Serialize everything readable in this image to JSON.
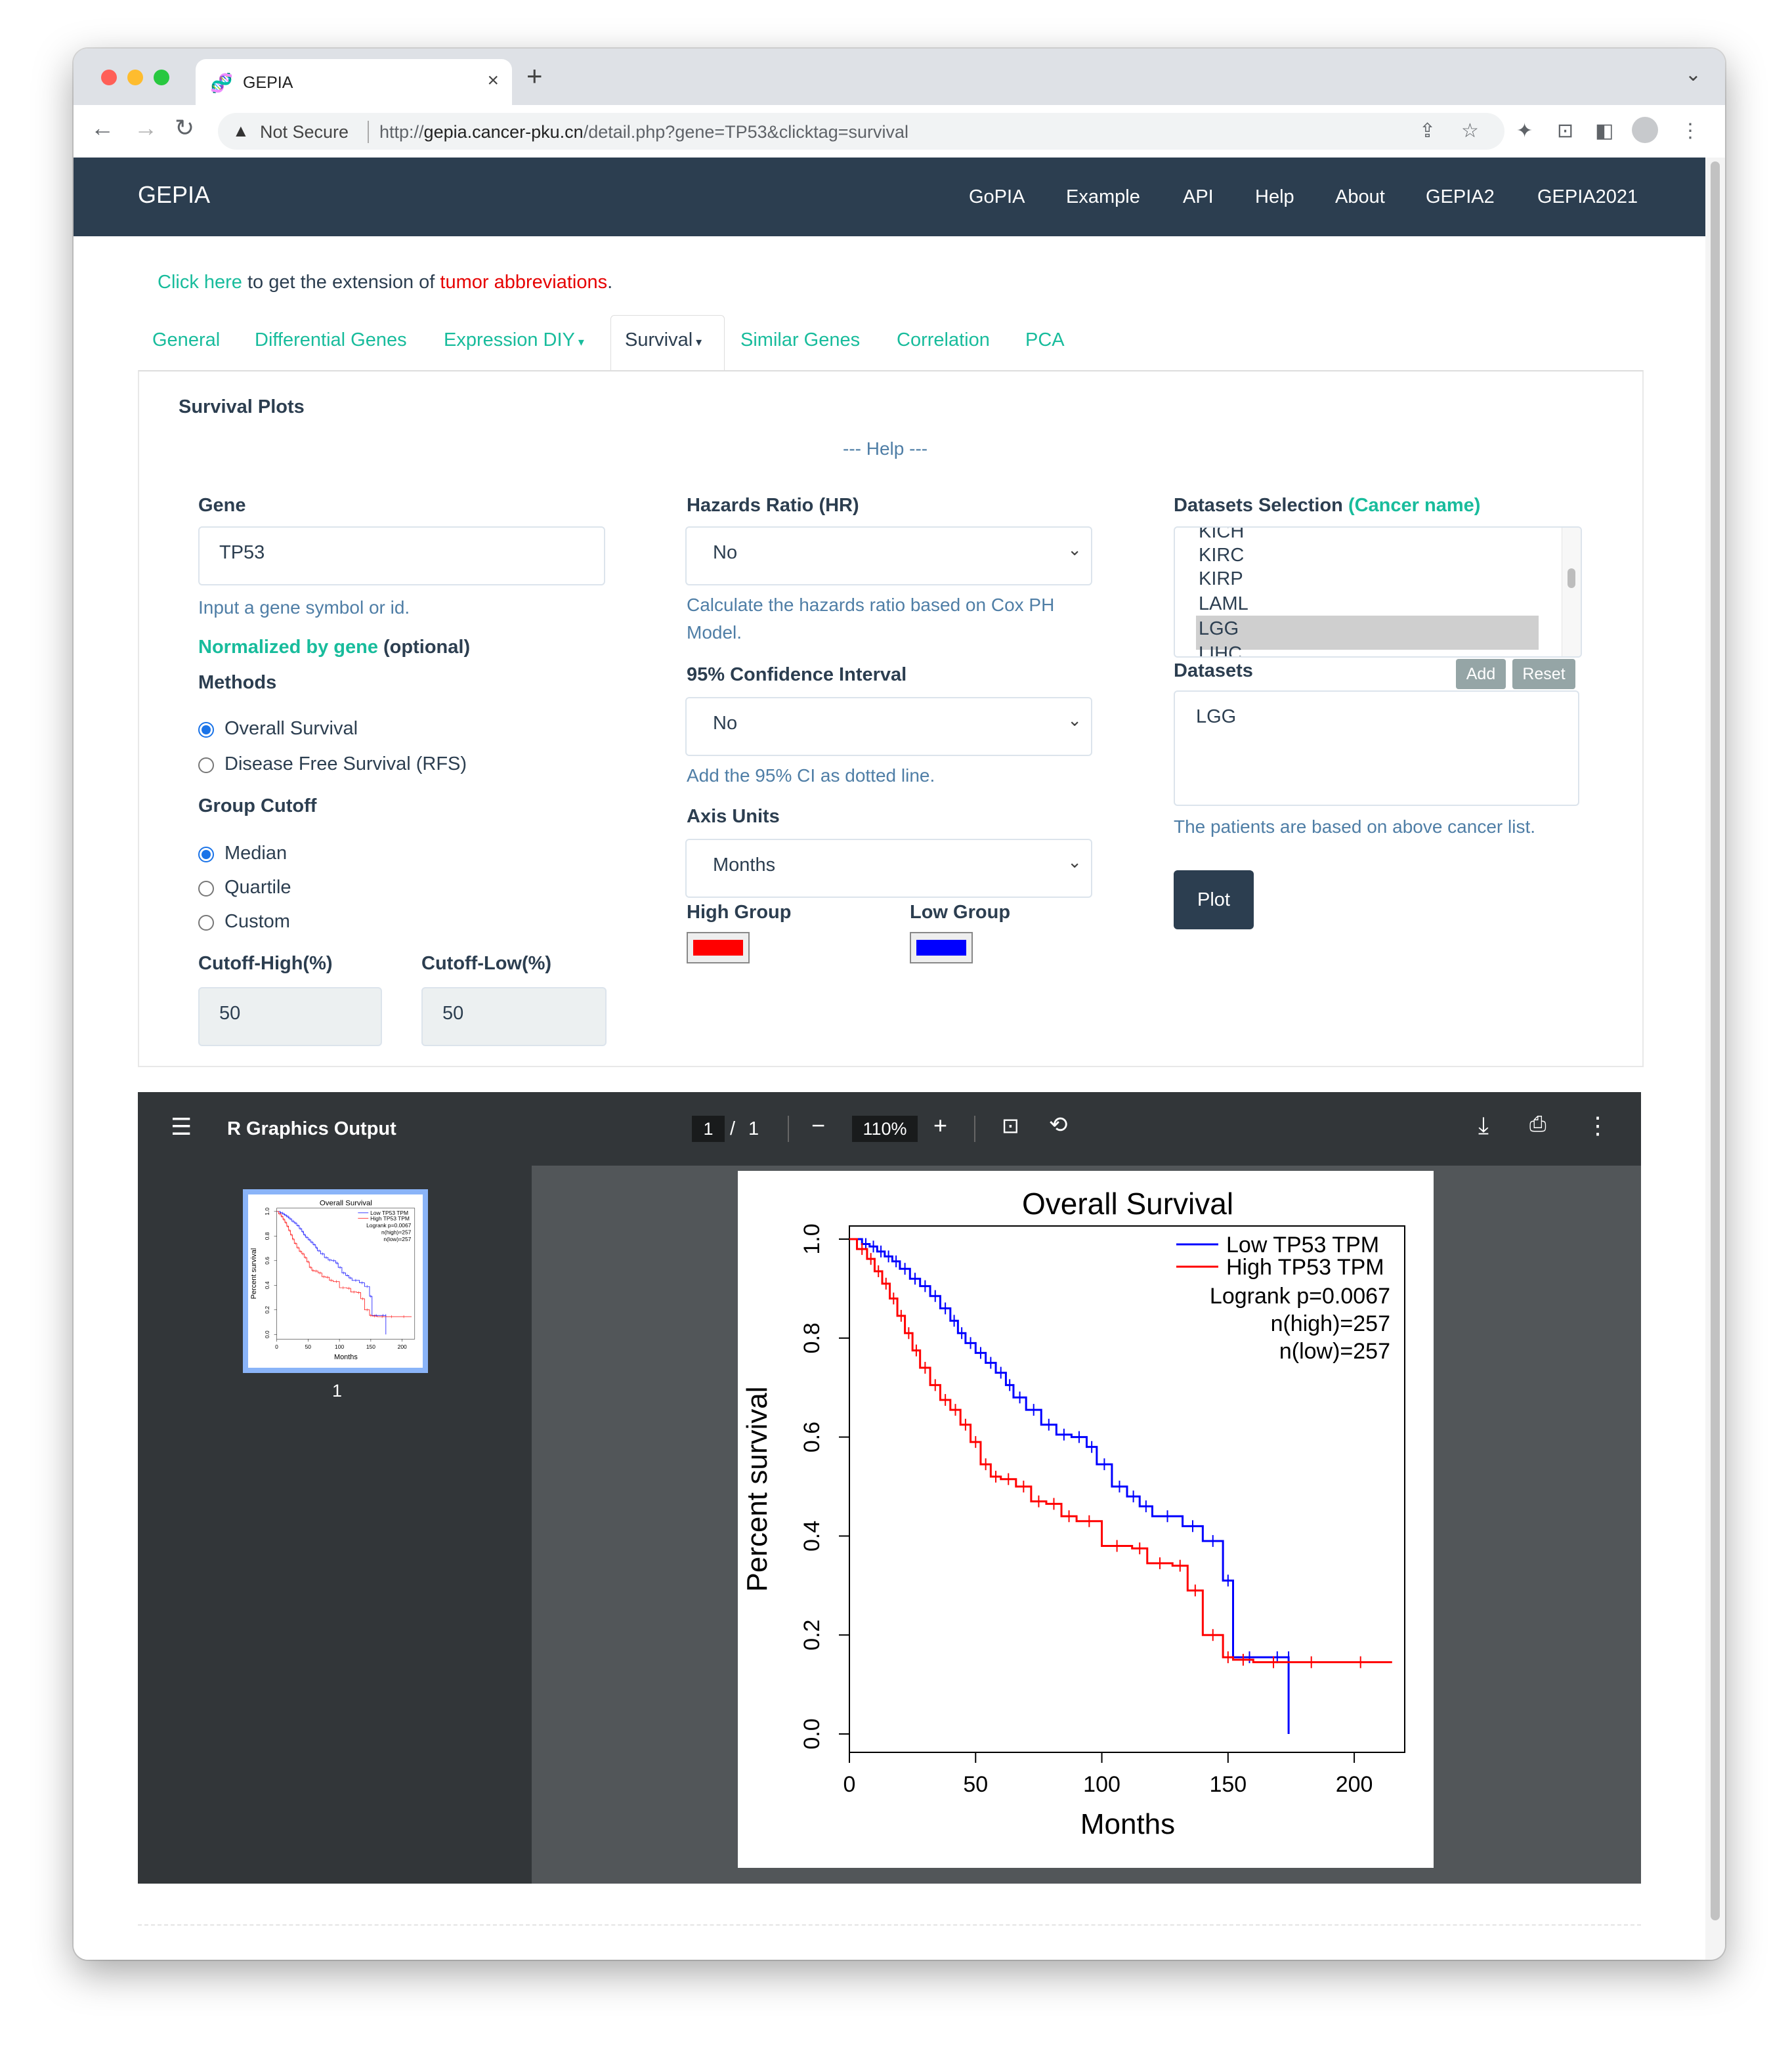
{
  "browser": {
    "tab_title": "GEPIA",
    "security_label": "Not Secure",
    "url_prefix": "http://",
    "url_host": "gepia.cancer-pku.cn",
    "url_path": "/detail.php?gene=TP53&clicktag=survival"
  },
  "navbar": {
    "brand": "GEPIA",
    "links": [
      "GoPIA",
      "Example",
      "API",
      "Help",
      "About",
      "GEPIA2",
      "GEPIA2021"
    ]
  },
  "notice": {
    "link": "Click here",
    "middle": " to get the extension of ",
    "red": "tumor abbreviations",
    "end": "."
  },
  "subtabs": [
    "General",
    "Differential Genes",
    "Expression DIY",
    "Survival",
    "Similar Genes",
    "Correlation",
    "PCA"
  ],
  "active_subtab": "Survival",
  "form": {
    "section_title": "Survival Plots",
    "help": "--- Help ---",
    "gene_label": "Gene",
    "gene_value": "TP53",
    "gene_hint": "Input a gene symbol or id.",
    "normalized_link": "Normalized by gene",
    "normalized_suffix": " (optional)",
    "methods_label": "Methods",
    "method_options": [
      "Overall Survival",
      "Disease Free Survival (RFS)"
    ],
    "group_cutoff_label": "Group Cutoff",
    "cutoff_options": [
      "Median",
      "Quartile",
      "Custom"
    ],
    "cutoff_high_label": "Cutoff-High(%)",
    "cutoff_low_label": "Cutoff-Low(%)",
    "cutoff_high_value": "50",
    "cutoff_low_value": "50",
    "hr_label": "Hazards Ratio (HR)",
    "hr_value": "No",
    "hr_hint_1": "Calculate the hazards ratio based on Cox PH",
    "hr_hint_2": "Model.",
    "ci_label": "95% Confidence Interval",
    "ci_value": "No",
    "ci_hint": "Add the 95% CI as dotted line.",
    "axis_label": "Axis Units",
    "axis_value": "Months",
    "high_group_label": "High Group",
    "low_group_label": "Low Group",
    "high_color": "#ff0000",
    "low_color": "#0000ff",
    "datasets_selection_label": "Datasets Selection",
    "cancer_name_link": "(Cancer name)",
    "dataset_list": [
      "KICH",
      "KIRC",
      "KIRP",
      "LAML",
      "LGG",
      "LIHC"
    ],
    "dataset_selected": "LGG",
    "datasets_label": "Datasets",
    "add_button": "Add",
    "reset_button": "Reset",
    "datasets_value": "LGG",
    "datasets_hint": "The patients are based on above cancer list.",
    "plot_button": "Plot"
  },
  "viewer": {
    "title": "R Graphics Output",
    "page_current": "1",
    "page_sep": "/",
    "page_total": "1",
    "zoom": "110%",
    "thumb_page": "1"
  },
  "chart_data": {
    "type": "line",
    "title": "Overall Survival",
    "xlabel": "Months",
    "ylabel": "Percent survival",
    "xlim": [
      0,
      220
    ],
    "ylim": [
      0,
      1
    ],
    "xticks": [
      0,
      50,
      100,
      150,
      200
    ],
    "yticks": [
      "0.0",
      "0.2",
      "0.4",
      "0.6",
      "0.8",
      "1.0"
    ],
    "legend_position": "top-right",
    "legend": [
      "Low TP53 TPM",
      "High TP53 TPM"
    ],
    "annotations": [
      "Logrank p=0.0067",
      "n(high)=257",
      "n(low)=257"
    ],
    "series": [
      {
        "name": "Low TP53 TPM",
        "color": "#0000ff",
        "x": [
          0,
          5,
          8,
          11,
          14,
          17,
          20,
          24,
          28,
          32,
          36,
          40,
          43,
          46,
          50,
          54,
          58,
          62,
          65,
          70,
          76,
          82,
          88,
          94,
          98,
          104,
          110,
          115,
          120,
          132,
          140,
          148,
          152,
          165,
          174,
          174
        ],
        "y": [
          1.0,
          0.99,
          0.985,
          0.975,
          0.965,
          0.955,
          0.94,
          0.92,
          0.905,
          0.885,
          0.86,
          0.835,
          0.81,
          0.79,
          0.77,
          0.75,
          0.73,
          0.705,
          0.68,
          0.655,
          0.625,
          0.605,
          0.6,
          0.58,
          0.545,
          0.5,
          0.48,
          0.46,
          0.44,
          0.42,
          0.39,
          0.31,
          0.155,
          0.155,
          0.155,
          0.0
        ]
      },
      {
        "name": "High TP53 TPM",
        "color": "#ff0000",
        "x": [
          0,
          3,
          7,
          10,
          13,
          16,
          19,
          22,
          25,
          28,
          32,
          36,
          40,
          44,
          48,
          52,
          56,
          60,
          66,
          72,
          78,
          84,
          90,
          100,
          112,
          118,
          128,
          134,
          140,
          148,
          152,
          160,
          176,
          190,
          215
        ],
        "y": [
          1.0,
          0.98,
          0.96,
          0.935,
          0.91,
          0.88,
          0.845,
          0.81,
          0.775,
          0.74,
          0.705,
          0.675,
          0.655,
          0.625,
          0.59,
          0.545,
          0.52,
          0.515,
          0.5,
          0.47,
          0.465,
          0.44,
          0.43,
          0.38,
          0.375,
          0.345,
          0.34,
          0.29,
          0.2,
          0.155,
          0.15,
          0.145,
          0.145,
          0.145,
          0.145
        ]
      }
    ]
  }
}
